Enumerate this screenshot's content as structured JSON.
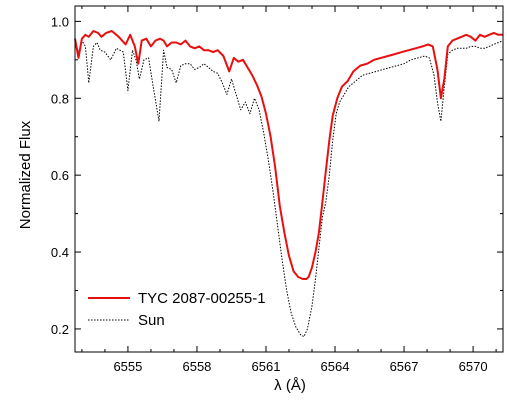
{
  "chart_data": {
    "type": "line",
    "title": "",
    "xlabel": "λ (Å)",
    "ylabel": "Normalized Flux",
    "xlim": [
      6552.7,
      6571.3
    ],
    "ylim": [
      0.14,
      1.04
    ],
    "xticks": [
      6555,
      6558,
      6561,
      6564,
      6567,
      6570
    ],
    "yticks": [
      0.2,
      0.4,
      0.6,
      0.8,
      1.0
    ],
    "ytick_labels": [
      "0.2",
      "0.4",
      "0.6",
      "0.8",
      "1.0"
    ],
    "grid": false,
    "legend_position": "bottom-left",
    "series": [
      {
        "name": "TYC 2087-00255-1",
        "color": "#e8100f",
        "style": "solid",
        "x": [
          6552.7,
          6552.85,
          6553.0,
          6553.15,
          6553.3,
          6553.5,
          6553.7,
          6553.85,
          6554.05,
          6554.3,
          6554.6,
          6554.9,
          6555.1,
          6555.3,
          6555.45,
          6555.6,
          6555.8,
          6556.0,
          6556.2,
          6556.4,
          6556.55,
          6556.7,
          6556.9,
          6557.1,
          6557.3,
          6557.5,
          6557.7,
          6557.9,
          6558.1,
          6558.3,
          6558.5,
          6558.7,
          6558.9,
          6559.15,
          6559.4,
          6559.6,
          6559.8,
          6560.0,
          6560.2,
          6560.4,
          6560.6,
          6560.8,
          6561.0,
          6561.2,
          6561.4,
          6561.6,
          6561.8,
          6562.0,
          6562.2,
          6562.4,
          6562.6,
          6562.75,
          6562.85,
          6563.0,
          6563.15,
          6563.3,
          6563.45,
          6563.6,
          6563.75,
          6563.9,
          6564.1,
          6564.3,
          6564.55,
          6564.8,
          6565.1,
          6565.4,
          6565.7,
          6566.0,
          6566.3,
          6566.6,
          6566.9,
          6567.2,
          6567.5,
          6567.8,
          6568.05,
          6568.25,
          6568.45,
          6568.6,
          6568.75,
          6568.9,
          6569.1,
          6569.3,
          6569.5,
          6569.7,
          6569.9,
          6570.1,
          6570.3,
          6570.5,
          6570.7,
          6570.9,
          6571.1,
          6571.3
        ],
        "y": [
          0.955,
          0.905,
          0.955,
          0.965,
          0.96,
          0.975,
          0.97,
          0.96,
          0.97,
          0.975,
          0.96,
          0.94,
          0.965,
          0.935,
          0.89,
          0.95,
          0.955,
          0.935,
          0.95,
          0.955,
          0.95,
          0.935,
          0.945,
          0.945,
          0.94,
          0.95,
          0.935,
          0.93,
          0.935,
          0.925,
          0.925,
          0.92,
          0.925,
          0.91,
          0.87,
          0.905,
          0.895,
          0.9,
          0.88,
          0.86,
          0.835,
          0.805,
          0.76,
          0.7,
          0.62,
          0.52,
          0.45,
          0.39,
          0.35,
          0.335,
          0.33,
          0.33,
          0.335,
          0.36,
          0.4,
          0.45,
          0.53,
          0.61,
          0.69,
          0.755,
          0.8,
          0.83,
          0.845,
          0.87,
          0.885,
          0.89,
          0.9,
          0.905,
          0.91,
          0.915,
          0.92,
          0.925,
          0.93,
          0.935,
          0.94,
          0.935,
          0.875,
          0.8,
          0.85,
          0.935,
          0.95,
          0.955,
          0.96,
          0.965,
          0.96,
          0.95,
          0.965,
          0.96,
          0.965,
          0.97,
          0.965,
          0.965
        ]
      },
      {
        "name": "Sun",
        "color": "#000000",
        "style": "dotted",
        "x": [
          6552.7,
          6552.85,
          6553.0,
          6553.15,
          6553.3,
          6553.5,
          6553.65,
          6553.8,
          6554.0,
          6554.25,
          6554.5,
          6554.8,
          6555.0,
          6555.2,
          6555.35,
          6555.5,
          6555.7,
          6555.9,
          6556.1,
          6556.35,
          6556.55,
          6556.7,
          6556.9,
          6557.1,
          6557.3,
          6557.5,
          6557.7,
          6557.9,
          6558.1,
          6558.3,
          6558.5,
          6558.7,
          6558.9,
          6559.1,
          6559.3,
          6559.5,
          6559.7,
          6559.9,
          6560.1,
          6560.3,
          6560.5,
          6560.7,
          6560.9,
          6561.1,
          6561.3,
          6561.5,
          6561.7,
          6561.9,
          6562.1,
          6562.3,
          6562.5,
          6562.65,
          6562.8,
          6563.0,
          6563.15,
          6563.3,
          6563.45,
          6563.6,
          6563.75,
          6563.9,
          6564.05,
          6564.2,
          6564.4,
          6564.6,
          6564.9,
          6565.2,
          6565.5,
          6565.8,
          6566.1,
          6566.4,
          6566.7,
          6567.0,
          6567.3,
          6567.6,
          6567.9,
          6568.1,
          6568.3,
          6568.45,
          6568.6,
          6568.75,
          6568.9,
          6569.1,
          6569.3,
          6569.5,
          6569.7,
          6569.9,
          6570.1,
          6570.3,
          6570.5,
          6570.7,
          6570.9,
          6571.1,
          6571.3
        ],
        "y": [
          0.945,
          0.92,
          0.95,
          0.935,
          0.84,
          0.935,
          0.945,
          0.925,
          0.92,
          0.9,
          0.93,
          0.92,
          0.82,
          0.925,
          0.9,
          0.85,
          0.9,
          0.905,
          0.83,
          0.74,
          0.925,
          0.88,
          0.875,
          0.84,
          0.885,
          0.89,
          0.89,
          0.875,
          0.88,
          0.89,
          0.88,
          0.87,
          0.865,
          0.84,
          0.81,
          0.85,
          0.81,
          0.77,
          0.79,
          0.76,
          0.8,
          0.77,
          0.71,
          0.64,
          0.56,
          0.47,
          0.38,
          0.3,
          0.24,
          0.205,
          0.185,
          0.18,
          0.2,
          0.26,
          0.33,
          0.41,
          0.49,
          0.53,
          0.6,
          0.69,
          0.76,
          0.79,
          0.81,
          0.83,
          0.845,
          0.86,
          0.865,
          0.87,
          0.875,
          0.88,
          0.885,
          0.89,
          0.9,
          0.905,
          0.91,
          0.905,
          0.86,
          0.79,
          0.74,
          0.83,
          0.915,
          0.925,
          0.93,
          0.93,
          0.93,
          0.935,
          0.935,
          0.93,
          0.93,
          0.935,
          0.94,
          0.945,
          0.95
        ]
      }
    ]
  }
}
